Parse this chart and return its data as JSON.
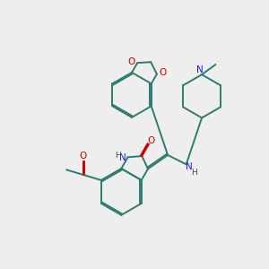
{
  "bg_color": "#eeeeee",
  "bond_color": "#2d7d6e",
  "n_color": "#1a1aff",
  "o_color": "#cc0000",
  "linewidth": 1.4,
  "figsize": [
    3.0,
    3.0
  ],
  "dpi": 100,
  "xlim": [
    0,
    10
  ],
  "ylim": [
    0,
    10
  ]
}
